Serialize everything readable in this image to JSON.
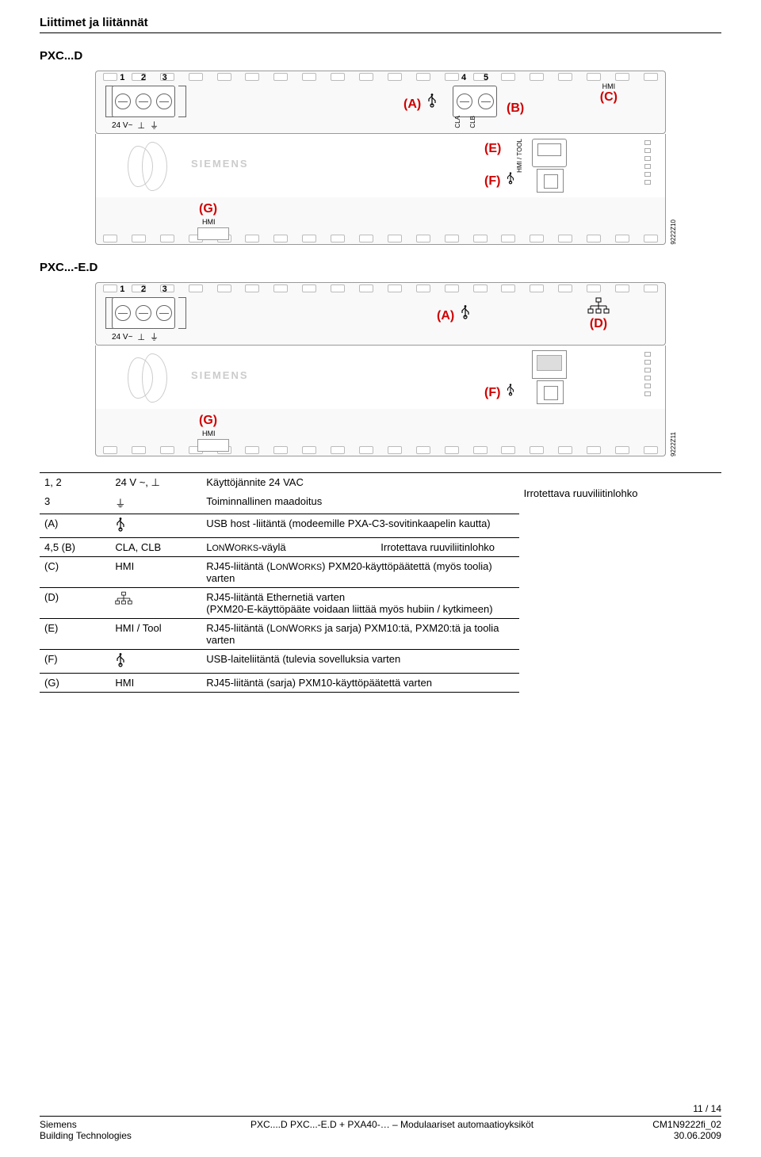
{
  "header": {
    "section_title": "Liittimet ja liitännät"
  },
  "models": {
    "m1": "PXC...D",
    "m2": "PXC...-E.D"
  },
  "schematic1": {
    "term_nums": [
      "1",
      "2",
      "3"
    ],
    "term_v": "24 V~",
    "term_sym1": "⊥",
    "a": "(A)",
    "clb_nums": [
      "4",
      "5"
    ],
    "cla": "CLA",
    "clb": "CLB",
    "b": "(B)",
    "hmi_top": "HMI",
    "c": "(C)",
    "siemens": "SIEMENS",
    "e": "(E)",
    "e_label": "HMI / TOOL",
    "f": "(F)",
    "g": "(G)",
    "g_hmi": "HMI",
    "figref": "9222Z10"
  },
  "schematic2": {
    "term_nums": [
      "1",
      "2",
      "3"
    ],
    "term_v": "24 V~",
    "term_sym1": "⊥",
    "a": "(A)",
    "d": "(D)",
    "siemens": "SIEMENS",
    "f": "(F)",
    "g": "(G)",
    "g_hmi": "HMI",
    "figref": "9222Z11"
  },
  "table": {
    "rows": [
      {
        "a": "1, 2",
        "b": "24 V ~, ⊥",
        "c": "Käyttöjännite 24 VAC",
        "d_span": "Irrotettava ruuviliitinlohko",
        "group_first": true
      },
      {
        "a": "3",
        "b_sym": "⏚",
        "c": "Toiminnallinen maadoitus",
        "group_last": true
      },
      {
        "a": "(A)",
        "b_sym": "usb",
        "c": "USB host -liitäntä (modeemille PXA-C3-sovitinkaapelin kautta)"
      },
      {
        "a": "4,5 (B)",
        "b": "CLA, CLB",
        "c": "LONWORKS-väylä",
        "d": "Irrotettava ruuviliitinlohko"
      },
      {
        "a": "(C)",
        "b": "HMI",
        "c": "RJ45-liitäntä (LONWORKS) PXM20-käyttöpäätettä (myös toolia) varten"
      },
      {
        "a": "(D)",
        "b_sym": "eth",
        "c": "RJ45-liitäntä Ethernetiä varten\n(PXM20-E-käyttöpääte voidaan liittää myös hubiin / kytkimeen)"
      },
      {
        "a": "(E)",
        "b": "HMI / Tool",
        "c": "RJ45-liitäntä (LONWORKS ja sarja) PXM10:tä, PXM20:tä ja toolia varten"
      },
      {
        "a": "(F)",
        "b_sym": "usb",
        "c": "USB-laiteliitäntä (tulevia sovelluksia varten"
      },
      {
        "a": "(G)",
        "b": "HMI",
        "c": "RJ45-liitäntä (sarja) PXM10-käyttöpäätettä varten"
      }
    ]
  },
  "footer": {
    "page": "11 / 14",
    "left1": "Siemens",
    "left2": "Building Technologies",
    "center": "PXC....D PXC...-E.D + PXA40-… – Modulaariset automaatioyksiköt",
    "right1": "CM1N9222fi_02",
    "right2": "30.06.2009"
  },
  "icons": {
    "usb": "⎇",
    "ground": "⏚",
    "eth_top": "□",
    "eth_bot": "□─□─□"
  },
  "colors": {
    "red": "#d00000",
    "text": "#000000",
    "grey": "#999999"
  }
}
